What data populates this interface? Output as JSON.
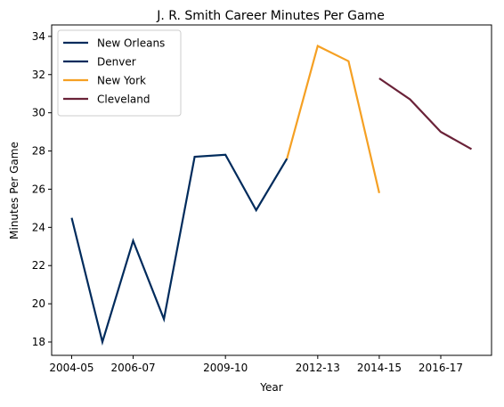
{
  "chart_data": {
    "type": "line",
    "title": "J. R. Smith Career Minutes Per Game",
    "xlabel": "Year",
    "ylabel": "Minutes Per Game",
    "x_ticks": [
      "2004-05",
      "2006-07",
      "2009-10",
      "2012-13",
      "2014-15",
      "2016-17"
    ],
    "y_ticks": [
      18,
      20,
      22,
      24,
      26,
      28,
      30,
      32,
      34
    ],
    "ylim": [
      17.3,
      34.6
    ],
    "grid": false,
    "legend_position": "top-left",
    "series": [
      {
        "name": "New Orleans",
        "color": "#002b5c",
        "x": [],
        "y": []
      },
      {
        "name": "Denver",
        "color": "#002b5c",
        "x": [
          "2004-05",
          "2005-06",
          "2006-07",
          "2007-08",
          "2008-09",
          "2009-10",
          "2010-11",
          "2011-12"
        ],
        "y": [
          24.5,
          18.0,
          23.3,
          19.2,
          27.7,
          27.8,
          24.9,
          27.6
        ]
      },
      {
        "name": "New York",
        "color": "#f5a023",
        "x": [
          "2011-12",
          "2012-13",
          "2013-14",
          "2014-15"
        ],
        "y": [
          27.6,
          33.5,
          32.7,
          25.8
        ]
      },
      {
        "name": "Cleveland",
        "color": "#6a2238",
        "x": [
          "2014-15",
          "2015-16",
          "2016-17",
          "2017-18"
        ],
        "y": [
          31.8,
          30.7,
          29.0,
          28.1
        ]
      }
    ]
  }
}
